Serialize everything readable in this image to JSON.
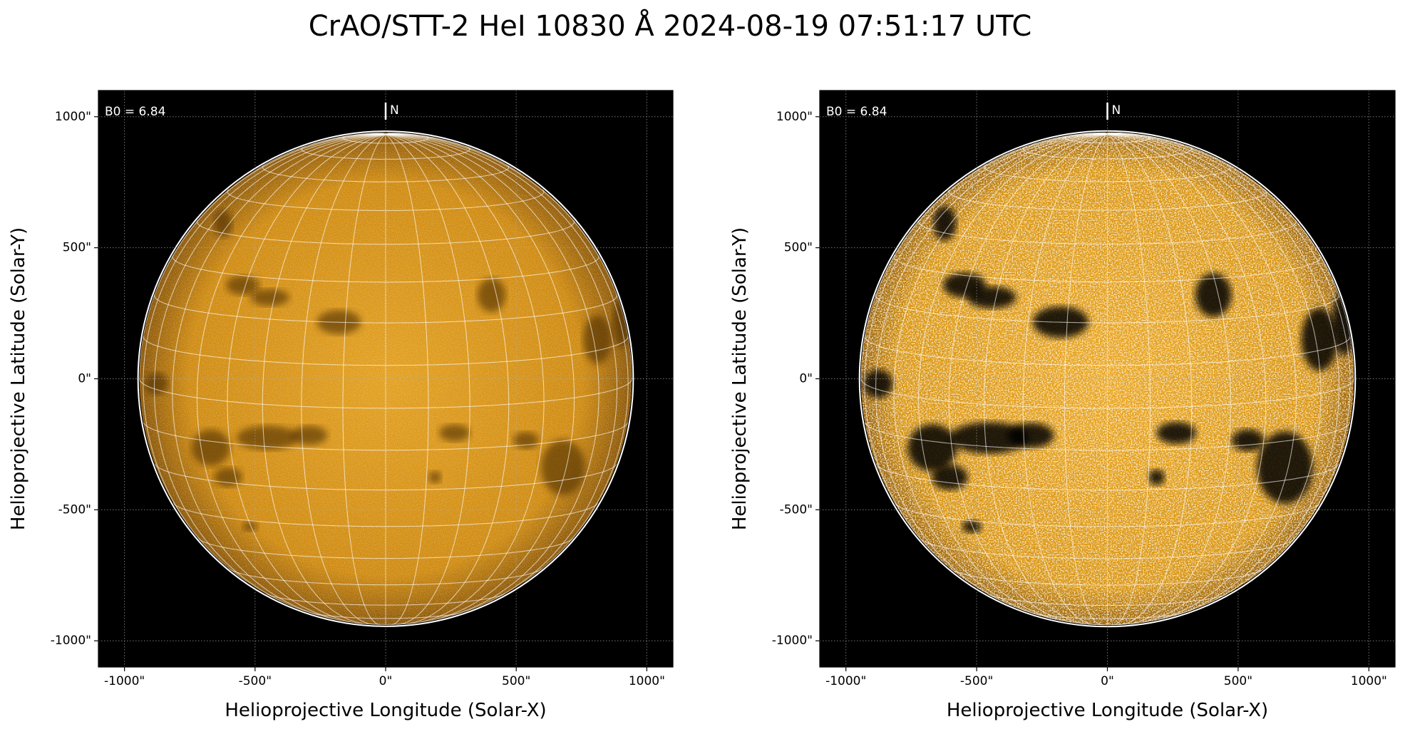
{
  "title": "CrAO/STT-2 HeI 10830 Å 2024-08-19 07:51:17 UTC",
  "chart_data": [
    {
      "type": "image",
      "xlabel": "Helioprojective Longitude (Solar-X)",
      "ylabel": "Helioprojective Latitude (Solar-Y)",
      "annotation": "B0 = 6.84",
      "north_label": "N",
      "style": "normal",
      "xlim": [
        -1100,
        1100
      ],
      "ylim": [
        -1100,
        1100
      ],
      "grid": true,
      "xticks": [
        {
          "value": -1000,
          "label": "-1000\""
        },
        {
          "value": -500,
          "label": "-500\""
        },
        {
          "value": 0,
          "label": "0\""
        },
        {
          "value": 500,
          "label": "500\""
        },
        {
          "value": 1000,
          "label": "1000\""
        }
      ],
      "yticks": [
        {
          "value": -1000,
          "label": "-1000\""
        },
        {
          "value": -500,
          "label": "-500\""
        },
        {
          "value": 0,
          "label": "0\""
        },
        {
          "value": 500,
          "label": "500\""
        },
        {
          "value": 1000,
          "label": "1000\""
        }
      ]
    },
    {
      "type": "image",
      "xlabel": "Helioprojective Longitude (Solar-X)",
      "ylabel": "Helioprojective Latitude (Solar-Y)",
      "annotation": "B0 = 6.84",
      "north_label": "N",
      "style": "enhanced",
      "xlim": [
        -1100,
        1100
      ],
      "ylim": [
        -1100,
        1100
      ],
      "grid": true,
      "xticks": [
        {
          "value": -1000,
          "label": "-1000\""
        },
        {
          "value": -500,
          "label": "-500\""
        },
        {
          "value": 0,
          "label": "0\""
        },
        {
          "value": 500,
          "label": "500\""
        },
        {
          "value": 1000,
          "label": "1000\""
        }
      ],
      "yticks": [
        {
          "value": -1000,
          "label": "-1000\""
        },
        {
          "value": -500,
          "label": "-500\""
        },
        {
          "value": 0,
          "label": "0\""
        },
        {
          "value": 500,
          "label": "500\""
        },
        {
          "value": 1000,
          "label": "1000\""
        }
      ]
    }
  ]
}
